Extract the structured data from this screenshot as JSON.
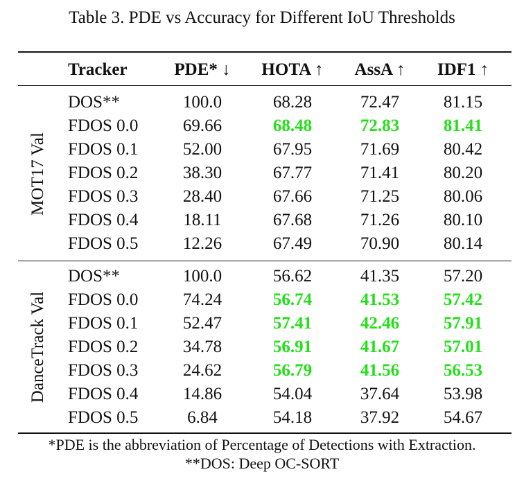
{
  "caption": "Table 3. PDE vs Accuracy for Different IoU Thresholds",
  "headers": {
    "tracker": "Tracker",
    "pde": "PDE* ↓",
    "hota": "HOTA ↑",
    "assa": "AssA ↑",
    "idf1": "IDF1 ↑"
  },
  "highlight_color": "#22e017",
  "groups": [
    {
      "label": "MOT17 Val",
      "rows": [
        {
          "tracker": "DOS**",
          "pde": "100.0",
          "hota": "68.28",
          "assa": "72.47",
          "idf1": "81.15",
          "best": false
        },
        {
          "tracker": "FDOS 0.0",
          "pde": "69.66",
          "hota": "68.48",
          "assa": "72.83",
          "idf1": "81.41",
          "best": true
        },
        {
          "tracker": "FDOS 0.1",
          "pde": "52.00",
          "hota": "67.95",
          "assa": "71.69",
          "idf1": "80.42",
          "best": false
        },
        {
          "tracker": "FDOS 0.2",
          "pde": "38.30",
          "hota": "67.77",
          "assa": "71.41",
          "idf1": "80.20",
          "best": false
        },
        {
          "tracker": "FDOS 0.3",
          "pde": "28.40",
          "hota": "67.66",
          "assa": "71.25",
          "idf1": "80.06",
          "best": false
        },
        {
          "tracker": "FDOS 0.4",
          "pde": "18.11",
          "hota": "67.68",
          "assa": "71.26",
          "idf1": "80.10",
          "best": false
        },
        {
          "tracker": "FDOS 0.5",
          "pde": "12.26",
          "hota": "67.49",
          "assa": "70.90",
          "idf1": "80.14",
          "best": false
        }
      ]
    },
    {
      "label": "DanceTrack Val",
      "rows": [
        {
          "tracker": "DOS**",
          "pde": "100.0",
          "hota": "56.62",
          "assa": "41.35",
          "idf1": "57.20",
          "best": false
        },
        {
          "tracker": "FDOS 0.0",
          "pde": "74.24",
          "hota": "56.74",
          "assa": "41.53",
          "idf1": "57.42",
          "best": true
        },
        {
          "tracker": "FDOS 0.1",
          "pde": "52.47",
          "hota": "57.41",
          "assa": "42.46",
          "idf1": "57.91",
          "best": true
        },
        {
          "tracker": "FDOS 0.2",
          "pde": "34.78",
          "hota": "56.91",
          "assa": "41.67",
          "idf1": "57.01",
          "best": true
        },
        {
          "tracker": "FDOS 0.3",
          "pde": "24.62",
          "hota": "56.79",
          "assa": "41.56",
          "idf1": "56.53",
          "best": true
        },
        {
          "tracker": "FDOS 0.4",
          "pde": "14.86",
          "hota": "54.04",
          "assa": "37.64",
          "idf1": "53.98",
          "best": false
        },
        {
          "tracker": "FDOS 0.5",
          "pde": "6.84",
          "hota": "54.18",
          "assa": "37.92",
          "idf1": "54.67",
          "best": false
        }
      ]
    }
  ],
  "footnotes": [
    "*PDE is the abbreviation of Percentage of Detections with Extraction.",
    "**DOS: Deep OC-SORT"
  ]
}
